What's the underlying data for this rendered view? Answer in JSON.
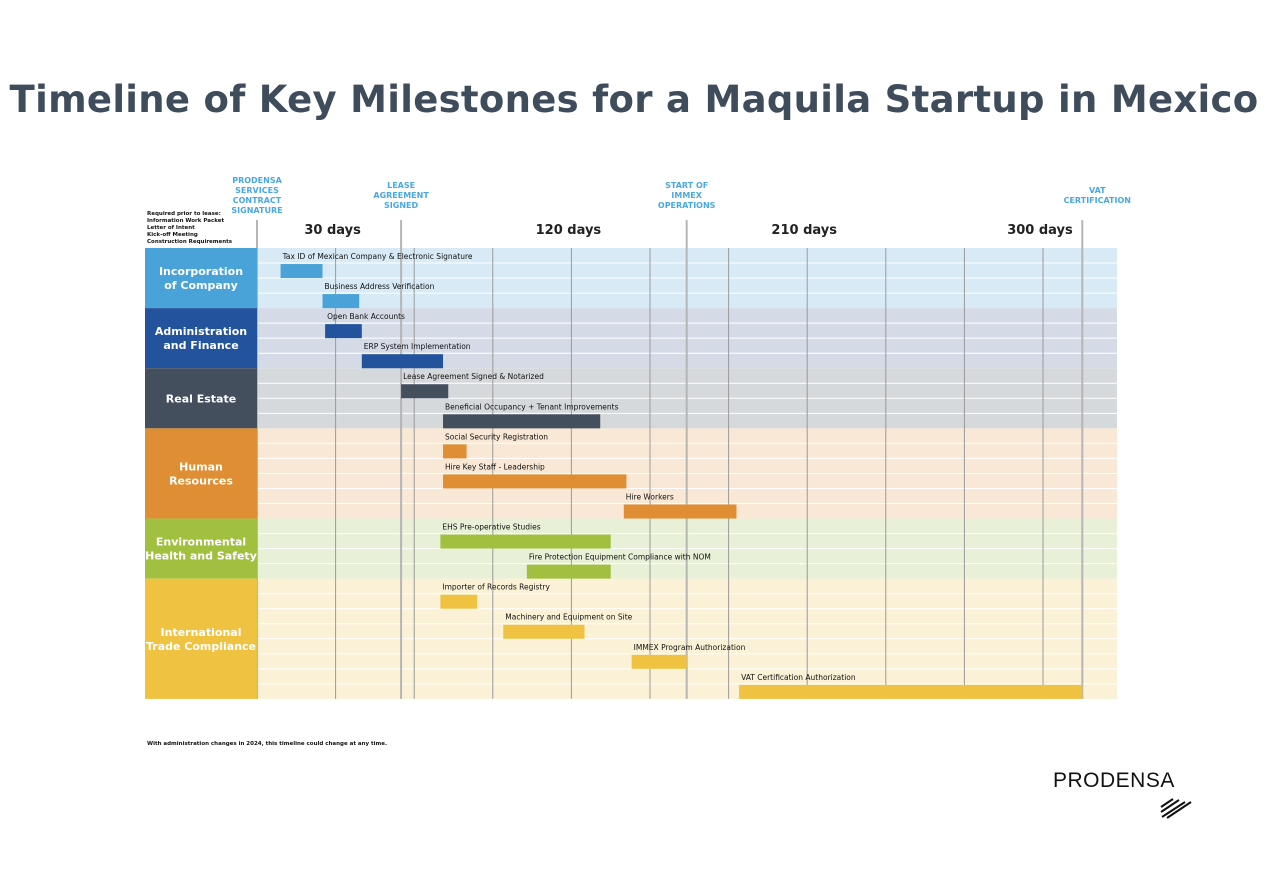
{
  "title": "Timeline of Key Milestones for a Maquila Startup in Mexico",
  "prerequisites": {
    "heading": "Required prior to lease:",
    "items": [
      "Information Work Packet",
      "Letter of Intent",
      "Kick-off Meeting",
      "Construction Requirements"
    ]
  },
  "footnote": "With administration changes in 2024, this timeline could change at any time.",
  "logo": {
    "text": "PRODENSA"
  },
  "chart_data": {
    "type": "gantt",
    "title": "Timeline of Key Milestones for a Maquila Startup in Mexico",
    "x_unit": "days",
    "xlim": [
      0,
      330
    ],
    "tick_labels": [
      {
        "day": 30,
        "label": "30 days"
      },
      {
        "day": 120,
        "label": "120 days"
      },
      {
        "day": 210,
        "label": "210 days"
      },
      {
        "day": 300,
        "label": "300 days"
      }
    ],
    "gridline_interval_days": 30,
    "milestones": [
      {
        "day": 0,
        "label": "PRODENSA SERVICES CONTRACT SIGNATURE"
      },
      {
        "day": 55,
        "label": "LEASE AGREEMENT SIGNED"
      },
      {
        "day": 164,
        "label": "START OF IMMEX OPERATIONS"
      },
      {
        "day": 315,
        "label": "VAT CERTIFICATION"
      }
    ],
    "milestone_color": "#4aa8e0",
    "categories": [
      {
        "name": "Incorporation of Company",
        "color": "#4aa3d8",
        "band": "#d7eaf5",
        "tasks": [
          {
            "name": "Tax ID of Mexican Company & Electronic Signature",
            "start": 9,
            "end": 25
          },
          {
            "name": "Business Address Verification",
            "start": 25,
            "end": 39
          }
        ]
      },
      {
        "name": "Administration and Finance",
        "color": "#22539c",
        "band": "#d4dbe7",
        "tasks": [
          {
            "name": "Open Bank Accounts",
            "start": 26,
            "end": 40
          },
          {
            "name": "ERP System Implementation",
            "start": 40,
            "end": 71
          }
        ]
      },
      {
        "name": "Real Estate",
        "color": "#444f5e",
        "band": "#d6d9dc",
        "tasks": [
          {
            "name": "Lease Agreement Signed & Notarized",
            "start": 55,
            "end": 73
          },
          {
            "name": "Beneficial Occupancy + Tenant Improvements",
            "start": 71,
            "end": 131
          }
        ]
      },
      {
        "name": "Human Resources",
        "color": "#e08e33",
        "band": "#f9e8d5",
        "tasks": [
          {
            "name": "Social Security Registration",
            "start": 71,
            "end": 80
          },
          {
            "name": "Hire Key Staff - Leadership",
            "start": 71,
            "end": 141
          },
          {
            "name": "Hire Workers",
            "start": 140,
            "end": 183
          }
        ]
      },
      {
        "name": "Environmental Health and Safety",
        "color": "#a2c040",
        "band": "#e8f0d7",
        "tasks": [
          {
            "name": "EHS Pre-operative Studies",
            "start": 70,
            "end": 135
          },
          {
            "name": "Fire Protection Equipment Compliance with NOM",
            "start": 103,
            "end": 135
          }
        ]
      },
      {
        "name": "International Trade Compliance",
        "color": "#efc242",
        "band": "#faf1d6",
        "tasks": [
          {
            "name": "Importer of Records Registry",
            "start": 70,
            "end": 84
          },
          {
            "name": "Machinery and Equipment on Site",
            "start": 94,
            "end": 125
          },
          {
            "name": "IMMEX Program Authorization",
            "start": 143,
            "end": 164
          },
          {
            "name": "VAT Certification Authorization",
            "start": 184,
            "end": 315
          }
        ]
      }
    ]
  }
}
